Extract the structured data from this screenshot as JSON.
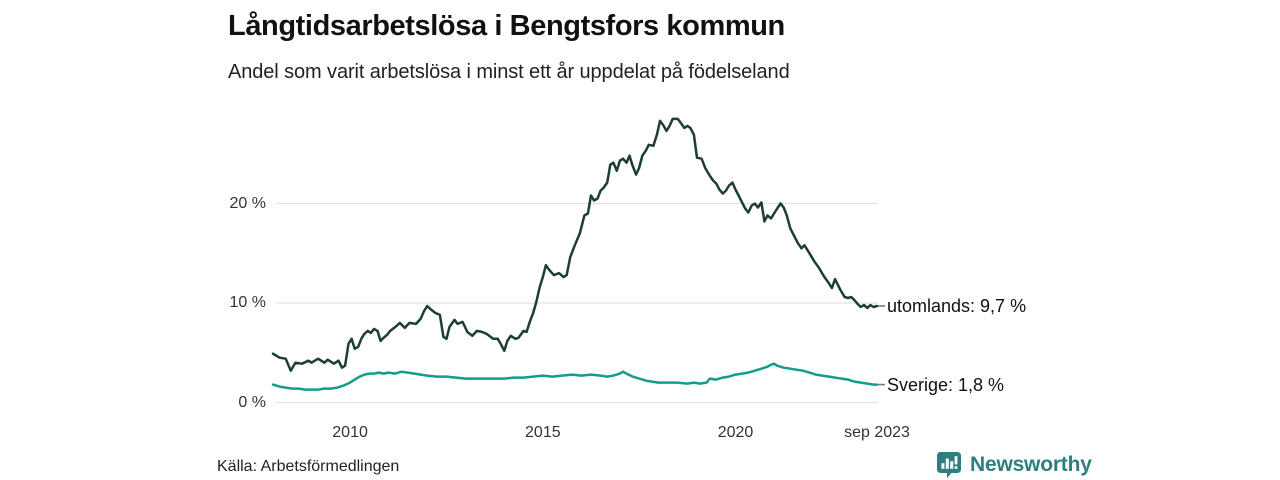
{
  "title": "Långtidsarbetslösa i Bengtsfors kommun",
  "subtitle": "Andel som varit arbetslösa i minst ett år uppdelat på födelseland",
  "source": "Källa: Arbetsförmedlingen",
  "branding": {
    "name": "Newsworthy",
    "color": "#2e7e80",
    "icon": "newsworthy-chart-bubble-icon"
  },
  "colors": {
    "background": "#ffffff",
    "grid": "#e2e2e2",
    "axis_text": "#333333",
    "title_text": "#111111",
    "connector": "#777777",
    "utomlands_line": "#1d3e37",
    "sverige_line": "#149c8c"
  },
  "chart_data": {
    "type": "line",
    "title": "Långtidsarbetslösa i Bengtsfors kommun",
    "subtitle": "Andel som varit arbetslösa i minst ett år uppdelat på födelseland",
    "unit": "%",
    "grid": "horizontal",
    "legend_position": "end-of-line",
    "x_axis": {
      "range": [
        2008.0,
        2023.67
      ],
      "ticks": [
        {
          "t": 2010,
          "label": "2010"
        },
        {
          "t": 2015,
          "label": "2015"
        },
        {
          "t": 2020,
          "label": "2020"
        },
        {
          "t": 2023.67,
          "label": "sep 2023"
        }
      ]
    },
    "y_axis": {
      "range": [
        0,
        29
      ],
      "ticks": [
        {
          "value": 0,
          "label": "0 %"
        },
        {
          "value": 10,
          "label": "10 %"
        },
        {
          "value": 20,
          "label": "20 %"
        }
      ]
    },
    "series": [
      {
        "name": "utomlands",
        "end_label": "utomlands: 9,7 %",
        "last_value": "9,7 %",
        "color": "#1d3e37",
        "points": [
          [
            2008.0,
            4.9
          ],
          [
            2008.17,
            4.5
          ],
          [
            2008.33,
            4.4
          ],
          [
            2008.46,
            3.2
          ],
          [
            2008.58,
            4.0
          ],
          [
            2008.75,
            3.9
          ],
          [
            2008.92,
            4.2
          ],
          [
            2009.0,
            4.0
          ],
          [
            2009.17,
            4.4
          ],
          [
            2009.33,
            4.0
          ],
          [
            2009.42,
            4.3
          ],
          [
            2009.58,
            3.9
          ],
          [
            2009.7,
            4.2
          ],
          [
            2009.79,
            3.5
          ],
          [
            2009.87,
            3.7
          ],
          [
            2009.96,
            5.9
          ],
          [
            2010.04,
            6.4
          ],
          [
            2010.12,
            5.4
          ],
          [
            2010.21,
            5.6
          ],
          [
            2010.29,
            6.4
          ],
          [
            2010.37,
            6.9
          ],
          [
            2010.46,
            7.2
          ],
          [
            2010.54,
            7.0
          ],
          [
            2010.62,
            7.4
          ],
          [
            2010.71,
            7.2
          ],
          [
            2010.79,
            6.2
          ],
          [
            2010.87,
            6.5
          ],
          [
            2010.96,
            6.8
          ],
          [
            2011.04,
            7.2
          ],
          [
            2011.21,
            7.7
          ],
          [
            2011.29,
            8.0
          ],
          [
            2011.42,
            7.5
          ],
          [
            2011.54,
            8.0
          ],
          [
            2011.71,
            7.9
          ],
          [
            2011.83,
            8.4
          ],
          [
            2011.92,
            9.2
          ],
          [
            2012.0,
            9.7
          ],
          [
            2012.08,
            9.4
          ],
          [
            2012.21,
            9.0
          ],
          [
            2012.33,
            8.8
          ],
          [
            2012.42,
            6.6
          ],
          [
            2012.5,
            6.4
          ],
          [
            2012.58,
            7.6
          ],
          [
            2012.71,
            8.3
          ],
          [
            2012.79,
            7.9
          ],
          [
            2012.92,
            8.1
          ],
          [
            2013.04,
            7.1
          ],
          [
            2013.17,
            6.7
          ],
          [
            2013.29,
            7.2
          ],
          [
            2013.42,
            7.1
          ],
          [
            2013.54,
            6.9
          ],
          [
            2013.71,
            6.4
          ],
          [
            2013.83,
            6.4
          ],
          [
            2013.92,
            5.8
          ],
          [
            2014.0,
            5.2
          ],
          [
            2014.08,
            6.2
          ],
          [
            2014.17,
            6.7
          ],
          [
            2014.29,
            6.4
          ],
          [
            2014.37,
            6.5
          ],
          [
            2014.5,
            7.2
          ],
          [
            2014.58,
            7.1
          ],
          [
            2014.67,
            8.2
          ],
          [
            2014.75,
            9.0
          ],
          [
            2014.83,
            10.1
          ],
          [
            2014.92,
            11.6
          ],
          [
            2015.0,
            12.6
          ],
          [
            2015.08,
            13.8
          ],
          [
            2015.17,
            13.3
          ],
          [
            2015.29,
            12.8
          ],
          [
            2015.42,
            13.0
          ],
          [
            2015.54,
            12.6
          ],
          [
            2015.62,
            12.8
          ],
          [
            2015.71,
            14.6
          ],
          [
            2015.83,
            15.8
          ],
          [
            2015.96,
            17.0
          ],
          [
            2016.08,
            18.8
          ],
          [
            2016.17,
            19.0
          ],
          [
            2016.25,
            20.8
          ],
          [
            2016.33,
            20.3
          ],
          [
            2016.42,
            20.5
          ],
          [
            2016.5,
            21.3
          ],
          [
            2016.58,
            21.6
          ],
          [
            2016.67,
            22.1
          ],
          [
            2016.75,
            23.9
          ],
          [
            2016.83,
            24.1
          ],
          [
            2016.92,
            23.3
          ],
          [
            2017.0,
            24.3
          ],
          [
            2017.08,
            24.5
          ],
          [
            2017.17,
            24.1
          ],
          [
            2017.25,
            24.8
          ],
          [
            2017.33,
            23.8
          ],
          [
            2017.42,
            22.9
          ],
          [
            2017.5,
            23.6
          ],
          [
            2017.58,
            24.8
          ],
          [
            2017.67,
            25.3
          ],
          [
            2017.75,
            25.9
          ],
          [
            2017.87,
            25.8
          ],
          [
            2017.96,
            26.9
          ],
          [
            2018.04,
            28.3
          ],
          [
            2018.12,
            27.9
          ],
          [
            2018.21,
            27.3
          ],
          [
            2018.29,
            27.8
          ],
          [
            2018.37,
            28.5
          ],
          [
            2018.5,
            28.5
          ],
          [
            2018.58,
            28.1
          ],
          [
            2018.67,
            27.6
          ],
          [
            2018.75,
            27.8
          ],
          [
            2018.83,
            27.6
          ],
          [
            2018.92,
            26.9
          ],
          [
            2019.0,
            24.6
          ],
          [
            2019.12,
            24.5
          ],
          [
            2019.21,
            23.6
          ],
          [
            2019.33,
            22.8
          ],
          [
            2019.42,
            22.3
          ],
          [
            2019.5,
            22.0
          ],
          [
            2019.58,
            21.4
          ],
          [
            2019.67,
            21.0
          ],
          [
            2019.75,
            21.3
          ],
          [
            2019.83,
            21.8
          ],
          [
            2019.92,
            22.1
          ],
          [
            2020.0,
            21.4
          ],
          [
            2020.08,
            20.8
          ],
          [
            2020.17,
            20.1
          ],
          [
            2020.25,
            19.5
          ],
          [
            2020.33,
            19.1
          ],
          [
            2020.42,
            19.8
          ],
          [
            2020.5,
            20.0
          ],
          [
            2020.58,
            19.6
          ],
          [
            2020.67,
            20.1
          ],
          [
            2020.75,
            18.2
          ],
          [
            2020.83,
            18.8
          ],
          [
            2020.92,
            18.5
          ],
          [
            2021.0,
            19.0
          ],
          [
            2021.08,
            19.5
          ],
          [
            2021.17,
            20.0
          ],
          [
            2021.25,
            19.6
          ],
          [
            2021.33,
            18.8
          ],
          [
            2021.42,
            17.5
          ],
          [
            2021.54,
            16.6
          ],
          [
            2021.62,
            16.0
          ],
          [
            2021.71,
            15.5
          ],
          [
            2021.79,
            15.8
          ],
          [
            2021.92,
            15.0
          ],
          [
            2022.04,
            14.2
          ],
          [
            2022.17,
            13.5
          ],
          [
            2022.29,
            12.7
          ],
          [
            2022.42,
            12.0
          ],
          [
            2022.5,
            11.5
          ],
          [
            2022.58,
            12.4
          ],
          [
            2022.71,
            11.4
          ],
          [
            2022.83,
            10.6
          ],
          [
            2022.92,
            10.5
          ],
          [
            2023.0,
            10.6
          ],
          [
            2023.08,
            10.3
          ],
          [
            2023.17,
            9.9
          ],
          [
            2023.25,
            9.6
          ],
          [
            2023.33,
            9.8
          ],
          [
            2023.42,
            9.5
          ],
          [
            2023.5,
            9.8
          ],
          [
            2023.58,
            9.6
          ],
          [
            2023.67,
            9.7
          ]
        ]
      },
      {
        "name": "Sverige",
        "end_label": "Sverige: 1,8 %",
        "last_value": "1,8 %",
        "color": "#149c8c",
        "points": [
          [
            2008.0,
            1.8
          ],
          [
            2008.17,
            1.6
          ],
          [
            2008.33,
            1.5
          ],
          [
            2008.5,
            1.4
          ],
          [
            2008.67,
            1.4
          ],
          [
            2008.83,
            1.3
          ],
          [
            2009.0,
            1.3
          ],
          [
            2009.17,
            1.3
          ],
          [
            2009.33,
            1.4
          ],
          [
            2009.5,
            1.4
          ],
          [
            2009.67,
            1.5
          ],
          [
            2009.83,
            1.7
          ],
          [
            2010.0,
            2.0
          ],
          [
            2010.12,
            2.3
          ],
          [
            2010.25,
            2.6
          ],
          [
            2010.37,
            2.8
          ],
          [
            2010.5,
            2.9
          ],
          [
            2010.62,
            2.9
          ],
          [
            2010.75,
            3.0
          ],
          [
            2010.87,
            2.9
          ],
          [
            2011.0,
            3.0
          ],
          [
            2011.17,
            2.9
          ],
          [
            2011.33,
            3.1
          ],
          [
            2011.5,
            3.0
          ],
          [
            2011.67,
            2.9
          ],
          [
            2011.83,
            2.8
          ],
          [
            2012.0,
            2.7
          ],
          [
            2012.25,
            2.6
          ],
          [
            2012.5,
            2.6
          ],
          [
            2012.75,
            2.5
          ],
          [
            2013.0,
            2.4
          ],
          [
            2013.25,
            2.4
          ],
          [
            2013.5,
            2.4
          ],
          [
            2013.75,
            2.4
          ],
          [
            2014.0,
            2.4
          ],
          [
            2014.25,
            2.5
          ],
          [
            2014.5,
            2.5
          ],
          [
            2014.75,
            2.6
          ],
          [
            2015.0,
            2.7
          ],
          [
            2015.25,
            2.6
          ],
          [
            2015.5,
            2.7
          ],
          [
            2015.75,
            2.8
          ],
          [
            2016.0,
            2.7
          ],
          [
            2016.25,
            2.8
          ],
          [
            2016.5,
            2.7
          ],
          [
            2016.67,
            2.6
          ],
          [
            2016.83,
            2.7
          ],
          [
            2017.0,
            2.9
          ],
          [
            2017.08,
            3.1
          ],
          [
            2017.17,
            2.9
          ],
          [
            2017.33,
            2.6
          ],
          [
            2017.5,
            2.4
          ],
          [
            2017.67,
            2.2
          ],
          [
            2017.83,
            2.1
          ],
          [
            2018.0,
            2.0
          ],
          [
            2018.25,
            2.0
          ],
          [
            2018.5,
            2.0
          ],
          [
            2018.75,
            1.9
          ],
          [
            2018.92,
            2.0
          ],
          [
            2019.08,
            1.9
          ],
          [
            2019.25,
            2.0
          ],
          [
            2019.33,
            2.4
          ],
          [
            2019.5,
            2.3
          ],
          [
            2019.67,
            2.5
          ],
          [
            2019.83,
            2.6
          ],
          [
            2020.0,
            2.8
          ],
          [
            2020.17,
            2.9
          ],
          [
            2020.33,
            3.0
          ],
          [
            2020.5,
            3.2
          ],
          [
            2020.67,
            3.4
          ],
          [
            2020.83,
            3.6
          ],
          [
            2020.92,
            3.8
          ],
          [
            2021.0,
            3.9
          ],
          [
            2021.08,
            3.7
          ],
          [
            2021.25,
            3.5
          ],
          [
            2021.42,
            3.4
          ],
          [
            2021.58,
            3.3
          ],
          [
            2021.75,
            3.2
          ],
          [
            2021.92,
            3.0
          ],
          [
            2022.08,
            2.8
          ],
          [
            2022.25,
            2.7
          ],
          [
            2022.42,
            2.6
          ],
          [
            2022.58,
            2.5
          ],
          [
            2022.75,
            2.4
          ],
          [
            2022.92,
            2.3
          ],
          [
            2023.08,
            2.1
          ],
          [
            2023.25,
            2.0
          ],
          [
            2023.42,
            1.9
          ],
          [
            2023.58,
            1.8
          ],
          [
            2023.67,
            1.8
          ]
        ]
      }
    ]
  }
}
